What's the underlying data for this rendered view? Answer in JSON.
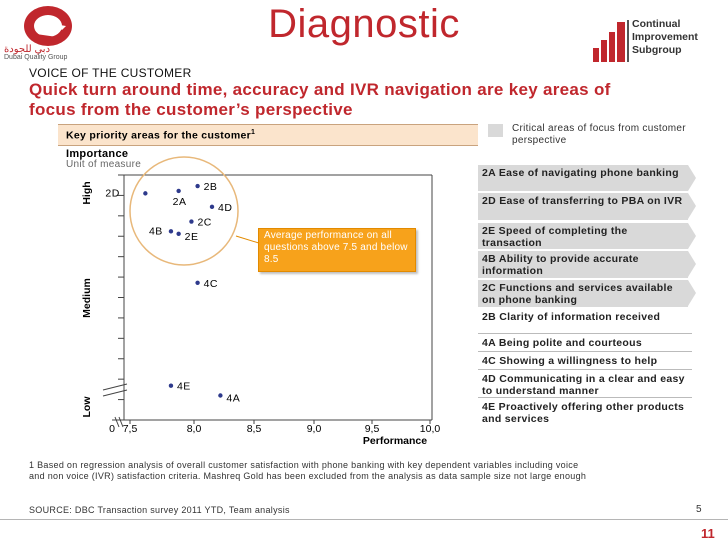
{
  "header": {
    "title": "Diagnostic",
    "logo_left_ar": "دبي للجودة",
    "logo_left_en": "Dubai Quality Group",
    "logo_right_line1": "Continual",
    "logo_right_line2": "Improvement",
    "logo_right_line3": "Subgroup"
  },
  "subheader": "VOICE OF THE CUSTOMER",
  "headline": "Quick turn around time, accuracy and IVR navigation are key areas of focus from the customer’s perspective",
  "legend": {
    "critical_label": "Critical areas of focus from customer perspective",
    "critical_color": "#d9d9d9"
  },
  "key_priority": {
    "label": "Key priority areas for the customer",
    "superscript": "1"
  },
  "importance": {
    "label": "Importance",
    "unit": "Unit of measure"
  },
  "callout": {
    "text": "Average performance on all questions above 7.5 and below 8.5",
    "color": "#f7a21b"
  },
  "chart_data": {
    "type": "scatter",
    "xlabel": "Performance",
    "ylabel": "",
    "x_ticks": [
      "0",
      "7,5",
      "8,0",
      "8,5",
      "9,0",
      "9,5",
      "10,0"
    ],
    "y_bands": [
      "High",
      "Medium",
      "Low"
    ],
    "xlim": [
      7.4,
      10.0
    ],
    "ylim": [
      0,
      10
    ],
    "points": [
      {
        "label": "2B",
        "x": 8.03,
        "y": 9.55
      },
      {
        "label": "2A",
        "x": 7.88,
        "y": 9.35
      },
      {
        "label": "2D",
        "x": 7.62,
        "y": 9.25
      },
      {
        "label": "4D",
        "x": 8.15,
        "y": 8.7
      },
      {
        "label": "2C",
        "x": 7.98,
        "y": 8.1
      },
      {
        "label": "4B",
        "x": 7.82,
        "y": 7.7
      },
      {
        "label": "2E",
        "x": 7.88,
        "y": 7.6
      },
      {
        "label": "4C",
        "x": 8.03,
        "y": 5.6
      },
      {
        "label": "4E",
        "x": 7.82,
        "y": 1.4
      },
      {
        "label": "4A",
        "x": 8.22,
        "y": 1.0
      }
    ],
    "marker_color": "#2e3a8c"
  },
  "critical_items": [
    {
      "code": "2A",
      "text": "Ease of navigating phone banking"
    },
    {
      "code": "2D",
      "text": "Ease of transferring to PBA on IVR"
    },
    {
      "code": "2E",
      "text": "Speed of completing the transaction"
    },
    {
      "code": "4B",
      "text": "Ability to provide accurate information"
    },
    {
      "code": "2C",
      "text": "Functions and services available on phone banking"
    }
  ],
  "other_items": [
    {
      "code": "2B",
      "text": "Clarity of information received"
    },
    {
      "code": "4A",
      "text": "Being polite and courteous"
    },
    {
      "code": "4C",
      "text": "Showing a willingness to help"
    },
    {
      "code": "4D",
      "text": "Communicating in a clear and easy to understand manner"
    },
    {
      "code": "4E",
      "text": "Proactively offering other products and services"
    }
  ],
  "footnote": "1 Based on regression analysis of overall customer satisfaction with phone banking with key dependent variables including voice and non voice (IVR) satisfaction criteria. Mashreq Gold has been excluded from the analysis as data sample size not large enough",
  "source": "SOURCE: DBC Transaction survey 2011 YTD, Team analysis",
  "page_number": "5",
  "slide_number": "11",
  "colors": {
    "accent_red": "#c0272d",
    "header_band": "#fbe4cc"
  }
}
